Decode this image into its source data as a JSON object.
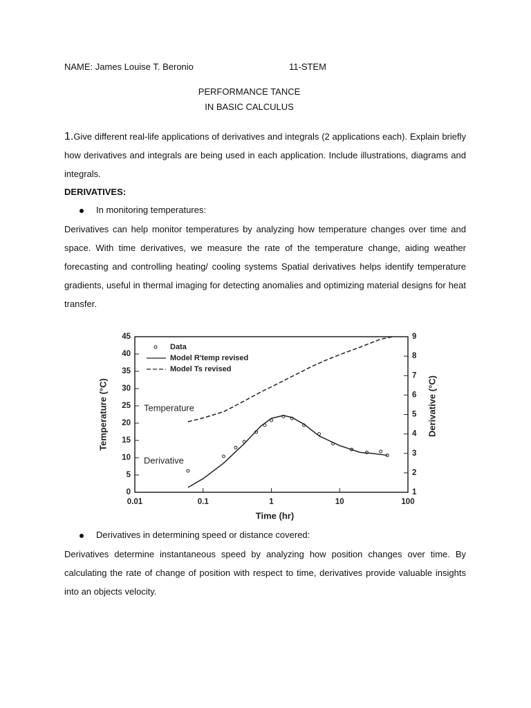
{
  "header": {
    "name": "NAME: James Louise T. Beronio",
    "section": "11-STEM"
  },
  "title": [
    "PERFORMANCE TANCE",
    "IN BASIC CALCULUS"
  ],
  "question": {
    "number": "1.",
    "text": "Give different real-life applications of derivatives and integrals (2 applications each). Explain briefly how derivatives and integrals are being used in each application. Include illustrations, diagrams and integrals."
  },
  "heading": "DERIVATIVES:",
  "items": [
    {
      "bullet": "In monitoring temperatures:",
      "paragraph": "Derivatives can help monitor temperatures by analyzing how temperature changes over time and space. With time derivatives, we measure the rate of the temperature change, aiding weather forecasting and controlling heating/ cooling systems Spatial derivatives helps identify temperature gradients, useful in thermal imaging for detecting anomalies and optimizing material designs for heat transfer."
    },
    {
      "bullet": "Derivatives in determining speed or distance covered:",
      "paragraph": "Derivatives determine instantaneous speed by analyzing how position changes over time. By calculating the rate of change of position with respect to time, derivatives provide valuable insights into an objects velocity."
    }
  ],
  "chart_data": {
    "type": "line",
    "xlabel": "Time (hr)",
    "ylabel": "Temperature (°C)",
    "y2label": "Derivative (°C)",
    "xscale": "log",
    "xlim": [
      0.01,
      100
    ],
    "xticks": [
      0.01,
      0.1,
      1,
      10,
      100
    ],
    "ylim": [
      0,
      45
    ],
    "yticks": [
      0,
      5,
      10,
      15,
      20,
      25,
      30,
      35,
      40,
      45
    ],
    "y2lim": [
      1,
      9
    ],
    "y2ticks": [
      1,
      2,
      3,
      4,
      5,
      6,
      7,
      8,
      9
    ],
    "annotations": [
      "Temperature",
      "Derivative"
    ],
    "series": [
      {
        "name": "Data",
        "style": "points",
        "axis": "y2",
        "color": "#222",
        "x": [
          0.06,
          0.2,
          0.3,
          0.4,
          0.6,
          0.8,
          1,
          1.5,
          2,
          3,
          5,
          8,
          15,
          25,
          40,
          50
        ],
        "values": [
          2.1,
          2.85,
          3.3,
          3.6,
          4.1,
          4.45,
          4.7,
          4.9,
          4.8,
          4.45,
          4.0,
          3.5,
          3.2,
          3.05,
          3.1,
          2.9
        ]
      },
      {
        "name": "Model R'temp revised",
        "style": "solid",
        "axis": "y2",
        "color": "#222",
        "x": [
          0.06,
          0.1,
          0.2,
          0.4,
          0.7,
          1,
          1.5,
          2,
          3,
          5,
          10,
          20,
          30,
          50
        ],
        "values": [
          1.25,
          1.7,
          2.5,
          3.5,
          4.4,
          4.8,
          4.95,
          4.85,
          4.5,
          3.9,
          3.4,
          3.05,
          3.0,
          2.9
        ]
      },
      {
        "name": "Model Ts revised",
        "style": "dashed",
        "axis": "y",
        "color": "#222",
        "x": [
          0.06,
          0.1,
          0.2,
          0.4,
          0.7,
          1,
          2,
          4,
          7,
          10,
          20,
          40,
          60
        ],
        "values": [
          20.4,
          21.5,
          23.3,
          26.4,
          29,
          30.5,
          33.5,
          36.5,
          38.6,
          39.8,
          42,
          44.3,
          45
        ]
      }
    ]
  }
}
